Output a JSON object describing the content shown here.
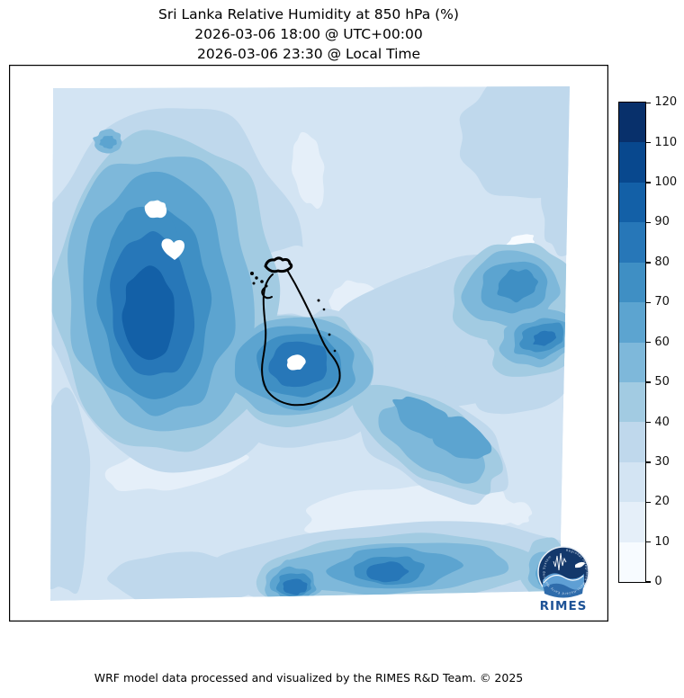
{
  "title": {
    "line1": "Sri Lanka Relative Humidity at 850 hPa (%)",
    "line2": "2026-03-06 18:00 @ UTC+00:00",
    "line3": "2026-03-06 23:30 @ Local Time"
  },
  "footer": {
    "credit": "WRF model data processed and visualized by the RIMES R&D Team. © 2025"
  },
  "colorbar": {
    "min": 0,
    "max": 120,
    "step": 10,
    "ticks": [
      0,
      10,
      20,
      30,
      40,
      50,
      60,
      70,
      80,
      90,
      100,
      110,
      120
    ],
    "colors": [
      "#f7fbff",
      "#e5eff9",
      "#d3e4f3",
      "#bfd8ec",
      "#a2cbe2",
      "#7eb8da",
      "#5ca4d0",
      "#3f8fc4",
      "#2777b8",
      "#1360a7",
      "#08488e",
      "#08306b"
    ]
  },
  "logo": {
    "label": "RIMES",
    "ring_text": "Regional Integrated Multi-Hazard Early Warning System"
  },
  "map": {
    "coastline": "Sri Lanka",
    "coastline_color": "#000000",
    "background_color": "#ffffff"
  },
  "chart_data": {
    "type": "heatmap",
    "subtype": "filled-contour weather map",
    "title": "Sri Lanka Relative Humidity at 850 hPa (%)",
    "variable": "relative humidity",
    "pressure_level_hPa": 850,
    "units": "%",
    "valid_time_utc": "2026-03-06 18:00 @ UTC+00:00",
    "valid_time_local": "2026-03-06 23:30 @ Local Time",
    "model": "WRF",
    "region": "Sri Lanka and surrounding ocean",
    "colormap": "Blues",
    "contour_levels": [
      0,
      10,
      20,
      30,
      40,
      50,
      60,
      70,
      80,
      90,
      100,
      110,
      120
    ],
    "colorbar_range": [
      0,
      120
    ],
    "legend_position": "right vertical colorbar",
    "grid": false,
    "features": [
      {
        "area": "northwest of Sri Lanka (toward southern India)",
        "humidity_pct": "80-110",
        "note": "large vertically-elongated humidity maximum with two small white saturated holes"
      },
      {
        "area": "southern interior of Sri Lanka",
        "humidity_pct": "80-100",
        "note": "closed maximum with a small white hole at its core"
      },
      {
        "area": "east / southeast of Sri Lanka",
        "humidity_pct": "60-90",
        "note": "broad moderate band with embedded darker cores near the right edge"
      },
      {
        "area": "southern edge of domain",
        "humidity_pct": "60-100",
        "note": "band of maxima along the bottom boundary including a dark spot south of the island"
      },
      {
        "area": "northern Sri Lanka and sea to the northeast",
        "humidity_pct": "30-40",
        "note": "relatively dry region with 20-30% pockets"
      },
      {
        "area": "southwest quadrant of domain",
        "humidity_pct": "20-40",
        "note": "dry area with a lighter 20-30% crescent"
      },
      {
        "area": "top-right corner",
        "humidity_pct": "40-50",
        "note": "slightly moister patch"
      }
    ]
  }
}
